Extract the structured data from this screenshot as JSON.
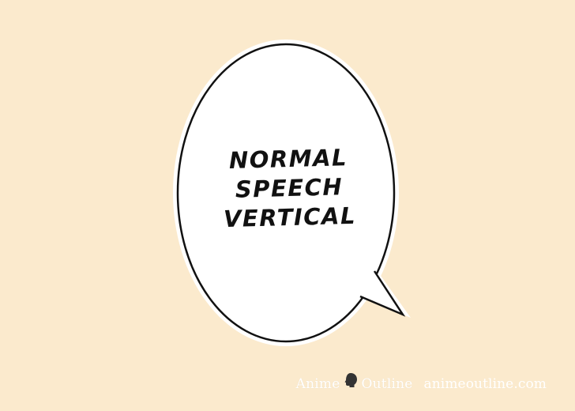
{
  "bubble": {
    "lines": [
      "NORMAL",
      "SPEECH",
      "VERTICAL"
    ]
  },
  "watermark": {
    "logo_left": "Anime",
    "logo_right": "Outline",
    "site": "animeoutline.com",
    "icon": "head-silhouette-icon"
  },
  "colors": {
    "background": "#fbeacd",
    "bubble_fill": "#ffffff",
    "bubble_outline": "#111111",
    "watermark_text": "#ffffff",
    "logo_icon": "#333333"
  }
}
